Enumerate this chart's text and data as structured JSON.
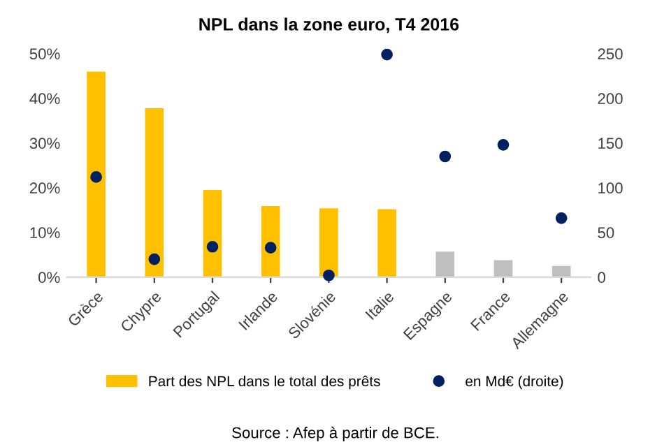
{
  "chart_data": {
    "type": "bar",
    "title": "NPL dans la zone euro, T4 2016",
    "categories": [
      "Grèce",
      "Chypre",
      "Portugal",
      "Irlande",
      "Slovénie",
      "Italie",
      "Espagne",
      "France",
      "Allemagne"
    ],
    "series": [
      {
        "name": "Part des NPL dans le total des prêts",
        "color": "#ffc000",
        "colors": [
          "#ffc000",
          "#ffc000",
          "#ffc000",
          "#ffc000",
          "#ffc000",
          "#ffc000",
          "#bfbfbf",
          "#bfbfbf",
          "#bfbfbf"
        ],
        "values": [
          46.0,
          37.8,
          19.5,
          15.9,
          15.4,
          15.2,
          5.7,
          3.8,
          2.5
        ]
      },
      {
        "name": "en Md€ (droite)",
        "type": "scatter",
        "axis": "y2",
        "color": "#002060",
        "values": [
          112,
          20,
          34,
          33,
          2,
          249,
          135,
          148,
          66
        ]
      }
    ],
    "ylim": [
      0,
      50
    ],
    "yticks": [
      {
        "value": 0,
        "label": "0%"
      },
      {
        "value": 10,
        "label": "10%"
      },
      {
        "value": 20,
        "label": "20%"
      },
      {
        "value": 30,
        "label": "30%"
      },
      {
        "value": 40,
        "label": "40%"
      },
      {
        "value": 50,
        "label": "50%"
      }
    ],
    "y2lim": [
      0,
      250
    ],
    "y2ticks": [
      0,
      50,
      100,
      150,
      200,
      250
    ],
    "marker": "circle",
    "grid": false,
    "legend": "bottom",
    "annotations": [
      "Source : Afep à partir de BCE."
    ]
  }
}
